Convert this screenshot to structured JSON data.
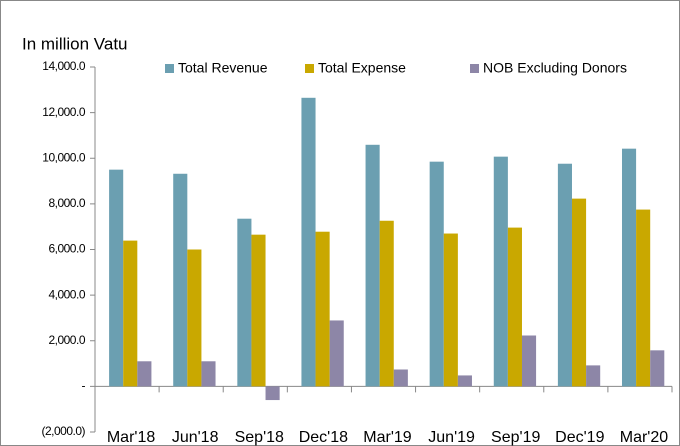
{
  "chart_data": {
    "type": "bar",
    "title": "In million Vatu",
    "categories": [
      "Mar'18",
      "Jun'18",
      "Sep'18",
      "Dec'18",
      "Mar'19",
      "Jun'19",
      "Sep'19",
      "Dec'19",
      "Mar'20"
    ],
    "series": [
      {
        "name": "Total Revenue",
        "color": "#6b9fb1",
        "values": [
          9500,
          9320,
          7350,
          12650,
          10590,
          9850,
          10070,
          9760,
          10420
        ]
      },
      {
        "name": "Total Expense",
        "color": "#c9a800",
        "values": [
          6390,
          6000,
          6650,
          6780,
          7260,
          6700,
          6960,
          8230,
          7750
        ]
      },
      {
        "name": "NOB Excluding Donors",
        "color": "#8d86a7",
        "values": [
          1100,
          1100,
          -600,
          2890,
          740,
          480,
          2230,
          920,
          1580
        ]
      }
    ],
    "ylim": [
      -2000,
      14000
    ],
    "yticks": [
      {
        "value": -2000,
        "label": "(2,000.0)"
      },
      {
        "value": 0,
        "label": "-"
      },
      {
        "value": 2000,
        "label": "2,000.0"
      },
      {
        "value": 4000,
        "label": "4,000.0"
      },
      {
        "value": 6000,
        "label": "6,000.0"
      },
      {
        "value": 8000,
        "label": "8,000.0"
      },
      {
        "value": 10000,
        "label": "10,000.0"
      },
      {
        "value": 12000,
        "label": "12,000.0"
      },
      {
        "value": 14000,
        "label": "14,000.0"
      }
    ],
    "grid": false,
    "legend": "top"
  }
}
